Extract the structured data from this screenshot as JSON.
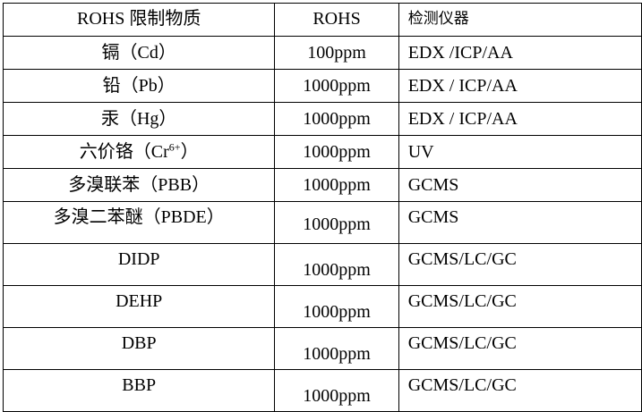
{
  "table": {
    "headers": [
      "ROHS 限制物质",
      "ROHS",
      "检测仪器"
    ],
    "rows": [
      {
        "substance": "镉（Cd）",
        "limit": "100ppm",
        "instrument": "EDX /ICP/AA"
      },
      {
        "substance": "铅（Pb）",
        "limit": "1000ppm",
        "instrument": "EDX / ICP/AA"
      },
      {
        "substance": "汞（Hg）",
        "limit": "1000ppm",
        "instrument": "EDX / ICP/AA"
      },
      {
        "substance": "六价铬（Cr",
        "substance_sup": "6+",
        "substance_end": "）",
        "limit": "1000ppm",
        "instrument": "UV"
      },
      {
        "substance": "多溴联苯（PBB）",
        "limit": "1000ppm",
        "instrument": "GCMS"
      },
      {
        "substance": "多溴二苯醚（PBDE）",
        "limit": "1000ppm",
        "instrument": "GCMS"
      },
      {
        "substance": "DIDP",
        "limit": "1000ppm",
        "instrument": "GCMS/LC/GC"
      },
      {
        "substance": "DEHP",
        "limit": "1000ppm",
        "instrument": "GCMS/LC/GC"
      },
      {
        "substance": "DBP",
        "limit": "1000ppm",
        "instrument": "GCMS/LC/GC"
      },
      {
        "substance": "BBP",
        "limit": "1000ppm",
        "instrument": "GCMS/LC/GC"
      }
    ]
  }
}
